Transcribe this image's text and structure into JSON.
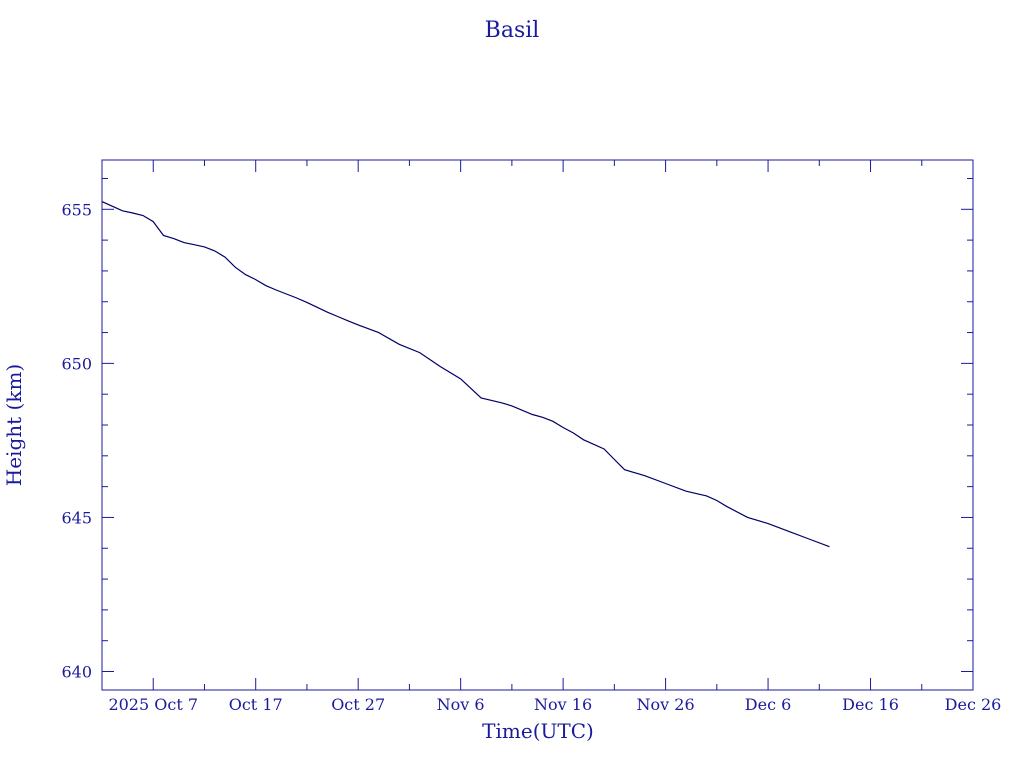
{
  "chart_data": {
    "type": "line",
    "title": "Basil",
    "xlabel": "Time(UTC)",
    "ylabel": "Height (km)",
    "x_axis": {
      "type": "date",
      "min": "2025-10-02",
      "max": "2025-12-26",
      "tick_labels": [
        {
          "date": "2025-10-07",
          "label": "2025 Oct 7"
        },
        {
          "date": "2025-10-17",
          "label": "Oct 17"
        },
        {
          "date": "2025-10-27",
          "label": "Oct 27"
        },
        {
          "date": "2025-11-06",
          "label": "Nov  6"
        },
        {
          "date": "2025-11-16",
          "label": "Nov 16"
        },
        {
          "date": "2025-11-26",
          "label": "Nov 26"
        },
        {
          "date": "2025-12-06",
          "label": "Dec  6"
        },
        {
          "date": "2025-12-16",
          "label": "Dec 16"
        },
        {
          "date": "2025-12-26",
          "label": "Dec 26"
        }
      ]
    },
    "ylim": [
      639.4,
      656.6
    ],
    "y_ticks": [
      640,
      645,
      650,
      655
    ],
    "y_tick_labels": [
      "640",
      "645",
      "650",
      "655"
    ],
    "grid": false,
    "line_color": "#000066",
    "axis_color": "#1a1a9c",
    "series": [
      {
        "x": [
          "2025-10-02",
          "2025-10-03",
          "2025-10-04",
          "2025-10-05",
          "2025-10-06",
          "2025-10-07",
          "2025-10-08",
          "2025-10-09",
          "2025-10-10",
          "2025-10-11",
          "2025-10-12",
          "2025-10-13",
          "2025-10-14",
          "2025-10-15",
          "2025-10-16",
          "2025-10-17",
          "2025-10-18",
          "2025-10-19",
          "2025-10-20",
          "2025-10-21",
          "2025-10-22",
          "2025-10-23",
          "2025-10-24",
          "2025-10-25",
          "2025-10-26",
          "2025-10-27",
          "2025-10-29",
          "2025-10-31",
          "2025-11-02",
          "2025-11-04",
          "2025-11-06",
          "2025-11-08",
          "2025-11-10",
          "2025-11-11",
          "2025-11-13",
          "2025-11-14",
          "2025-11-15",
          "2025-11-16",
          "2025-11-17",
          "2025-11-18",
          "2025-11-20",
          "2025-11-21",
          "2025-11-22",
          "2025-11-24",
          "2025-11-26",
          "2025-11-28",
          "2025-11-30",
          "2025-12-01",
          "2025-12-02",
          "2025-12-04",
          "2025-12-06",
          "2025-12-08",
          "2025-12-10",
          "2025-12-12"
        ],
        "y": [
          655.25,
          655.1,
          654.95,
          654.88,
          654.8,
          654.6,
          654.15,
          654.05,
          653.92,
          653.85,
          653.78,
          653.65,
          653.45,
          653.12,
          652.88,
          652.72,
          652.52,
          652.38,
          652.25,
          652.12,
          651.98,
          651.82,
          651.66,
          651.52,
          651.38,
          651.25,
          651.0,
          650.62,
          650.35,
          649.9,
          649.5,
          648.88,
          648.72,
          648.62,
          648.34,
          648.25,
          648.12,
          647.92,
          647.74,
          647.52,
          647.22,
          646.88,
          646.55,
          646.35,
          646.1,
          645.85,
          645.7,
          645.55,
          645.35,
          645.0,
          644.8,
          644.55,
          644.3,
          644.05
        ]
      }
    ]
  }
}
